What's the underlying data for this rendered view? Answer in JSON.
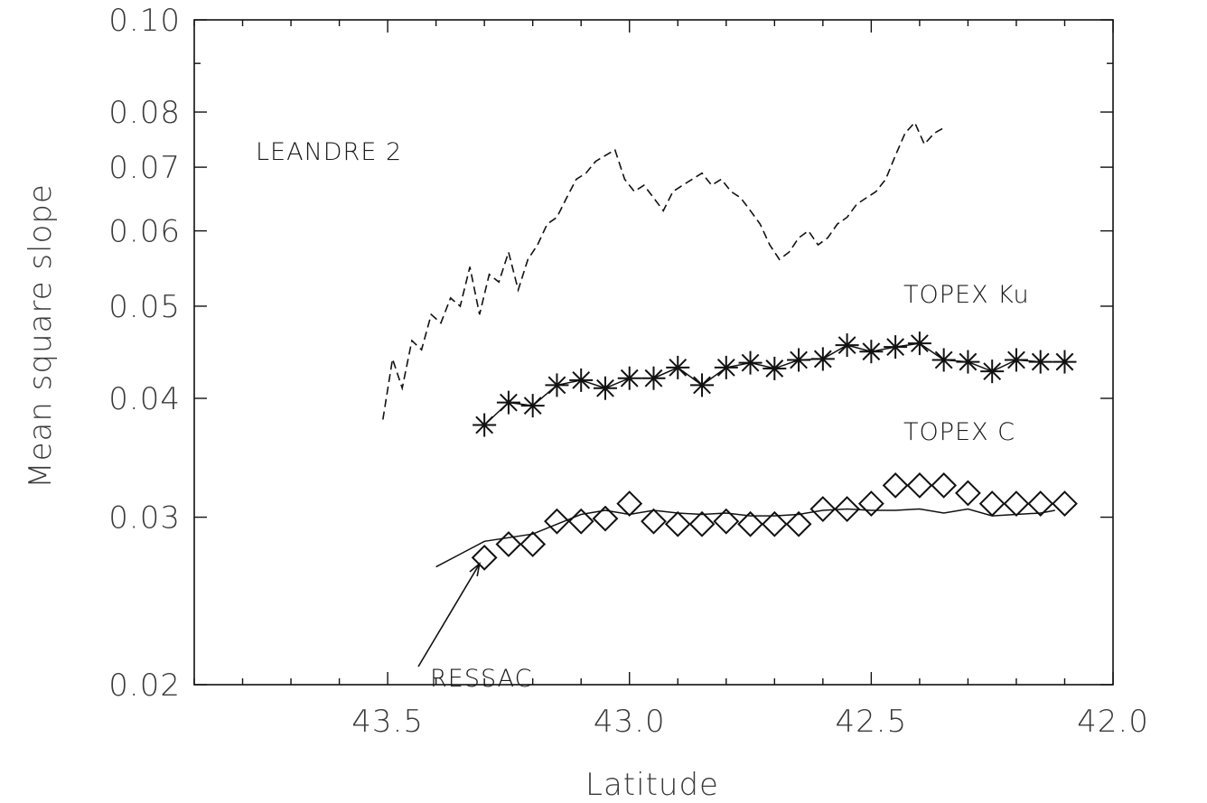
{
  "chart_data": {
    "type": "line",
    "xlabel": "Latitude",
    "ylabel": "Mean square slope",
    "x_reversed": true,
    "xlim": [
      43.9,
      42.0
    ],
    "ylim": [
      0.02,
      0.1
    ],
    "y_scale": "log",
    "x_ticks": [
      43.5,
      43.0,
      42.5,
      42.0
    ],
    "x_tick_labels": [
      "43.5",
      "43.0",
      "42.5",
      "42.0"
    ],
    "y_ticks": [
      0.02,
      0.03,
      0.04,
      0.05,
      0.06,
      0.07,
      0.08,
      0.1
    ],
    "y_tick_labels": [
      "0.02",
      "0.03",
      "0.04",
      "0.05",
      "0.06",
      "0.07",
      "0.08",
      "0.10"
    ],
    "grid": false,
    "series": [
      {
        "name": "LEANDRE 2",
        "style": "dashed",
        "color": "#111111",
        "x": [
          43.51,
          43.49,
          43.47,
          43.45,
          43.43,
          43.41,
          43.39,
          43.37,
          43.35,
          43.33,
          43.31,
          43.29,
          43.27,
          43.25,
          43.23,
          43.21,
          43.19,
          43.17,
          43.15,
          43.13,
          43.11,
          43.09,
          43.07,
          43.05,
          43.03,
          43.01,
          42.99,
          42.97,
          42.95,
          42.93,
          42.91,
          42.89,
          42.87,
          42.85,
          42.83,
          42.81,
          42.79,
          42.77,
          42.75,
          42.73,
          42.71,
          42.69,
          42.67,
          42.65,
          42.63,
          42.61,
          42.59,
          42.57,
          42.55,
          42.53,
          42.51,
          42.49,
          42.47,
          42.45,
          42.43,
          42.41,
          42.39,
          42.37,
          42.35
        ],
        "y": [
          0.038,
          0.044,
          0.041,
          0.046,
          0.045,
          0.049,
          0.048,
          0.051,
          0.05,
          0.055,
          0.049,
          0.054,
          0.053,
          0.057,
          0.052,
          0.056,
          0.058,
          0.061,
          0.062,
          0.065,
          0.068,
          0.069,
          0.071,
          0.072,
          0.073,
          0.068,
          0.066,
          0.067,
          0.065,
          0.063,
          0.066,
          0.067,
          0.068,
          0.069,
          0.067,
          0.068,
          0.066,
          0.065,
          0.063,
          0.061,
          0.058,
          0.056,
          0.057,
          0.059,
          0.06,
          0.058,
          0.059,
          0.061,
          0.062,
          0.064,
          0.065,
          0.066,
          0.068,
          0.072,
          0.076,
          0.078,
          0.074,
          0.076,
          0.077
        ]
      },
      {
        "name": "TOPEX Ku",
        "style": "line+asterisk",
        "color": "#111111",
        "x": [
          43.3,
          43.25,
          43.2,
          43.15,
          43.1,
          43.05,
          43.0,
          42.95,
          42.9,
          42.85,
          42.8,
          42.75,
          42.7,
          42.65,
          42.6,
          42.55,
          42.5,
          42.45,
          42.4,
          42.35,
          42.3,
          42.25,
          42.2,
          42.15,
          42.1
        ],
        "y": [
          0.0375,
          0.0396,
          0.0393,
          0.0413,
          0.0418,
          0.041,
          0.042,
          0.042,
          0.0431,
          0.0413,
          0.0431,
          0.0436,
          0.043,
          0.0439,
          0.044,
          0.0455,
          0.0448,
          0.0453,
          0.0457,
          0.0439,
          0.0437,
          0.0427,
          0.0439,
          0.0437,
          0.0437
        ]
      },
      {
        "name": "TOPEX C",
        "style": "diamond",
        "color": "#111111",
        "x": [
          43.3,
          43.25,
          43.2,
          43.15,
          43.1,
          43.05,
          43.0,
          42.95,
          42.9,
          42.85,
          42.8,
          42.75,
          42.7,
          42.65,
          42.6,
          42.55,
          42.5,
          42.45,
          42.4,
          42.35,
          42.3,
          42.25,
          42.2,
          42.15,
          42.1
        ],
        "y": [
          0.0272,
          0.0281,
          0.0281,
          0.0297,
          0.0297,
          0.0299,
          0.031,
          0.0297,
          0.0295,
          0.0295,
          0.0297,
          0.0295,
          0.0295,
          0.0295,
          0.0306,
          0.0306,
          0.031,
          0.0324,
          0.0324,
          0.0324,
          0.0318,
          0.031,
          0.031,
          0.031,
          0.031
        ]
      },
      {
        "name": "RESSAC",
        "style": "solid",
        "color": "#111111",
        "x": [
          43.4,
          43.3,
          43.2,
          43.1,
          43.05,
          43.0,
          42.95,
          42.9,
          42.85,
          42.8,
          42.75,
          42.7,
          42.65,
          42.6,
          42.55,
          42.5,
          42.45,
          42.4,
          42.35,
          42.3,
          42.25,
          42.2,
          42.15,
          42.12
        ],
        "y": [
          0.0266,
          0.0283,
          0.0288,
          0.0302,
          0.0305,
          0.0302,
          0.0305,
          0.0303,
          0.0302,
          0.0303,
          0.0301,
          0.0301,
          0.0302,
          0.0305,
          0.0306,
          0.0305,
          0.0305,
          0.0306,
          0.0303,
          0.0306,
          0.0301,
          0.0302,
          0.0303,
          0.0305
        ]
      }
    ],
    "annotations": [
      {
        "text": "LEANDRE 2"
      },
      {
        "text": "TOPEX Ku"
      },
      {
        "text": "TOPEX C"
      },
      {
        "text": "RESSAC",
        "arrow_to": {
          "x": 43.31,
          "y": 0.0268
        }
      }
    ]
  }
}
